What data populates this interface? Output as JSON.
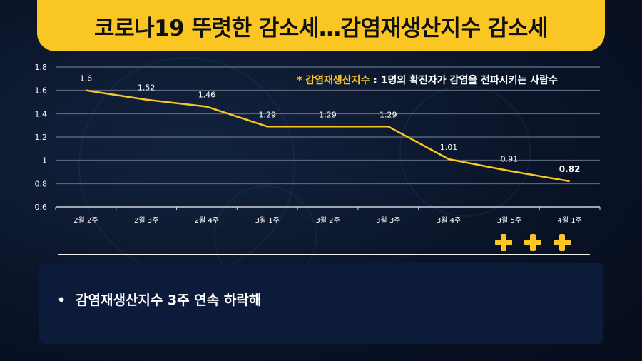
{
  "title": "코로나19 뚜렷한 감소세…감염재생산지수 감소세",
  "note": {
    "marker": "*",
    "key": "감염재생산지수",
    "separator": " : ",
    "text": "1명의 확진자가 감염을 전파시키는 사람수"
  },
  "summary": {
    "bullet": "•",
    "text": "감염재생산지수 3주 연속 하락해"
  },
  "markers": {
    "icon": "plus-icon",
    "count": 3,
    "color": "#f9c623"
  },
  "colors": {
    "accent": "#f9c623",
    "line": "#f9c623",
    "background": "#0a1428"
  },
  "chart_data": {
    "type": "line",
    "categories": [
      "2월 2주",
      "2월 3주",
      "2월 4주",
      "3월 1주",
      "3월 2주",
      "3월 3주",
      "3월 4주",
      "3월 5주",
      "4월 1주"
    ],
    "series": [
      {
        "values": [
          1.6,
          1.52,
          1.46,
          1.29,
          1.29,
          1.29,
          1.01,
          0.91,
          0.82
        ]
      }
    ],
    "data_labels": [
      "1.6",
      "1.52",
      "1.46",
      "1.29",
      "1.29",
      "1.29",
      "1.01",
      "0.91",
      "0.82"
    ],
    "ylim": [
      0.6,
      1.8
    ],
    "yticks": [
      "0.6",
      "0.8",
      "1",
      "1.2",
      "1.4",
      "1.6",
      "1.8"
    ],
    "grid": true,
    "highlight_last": true
  }
}
